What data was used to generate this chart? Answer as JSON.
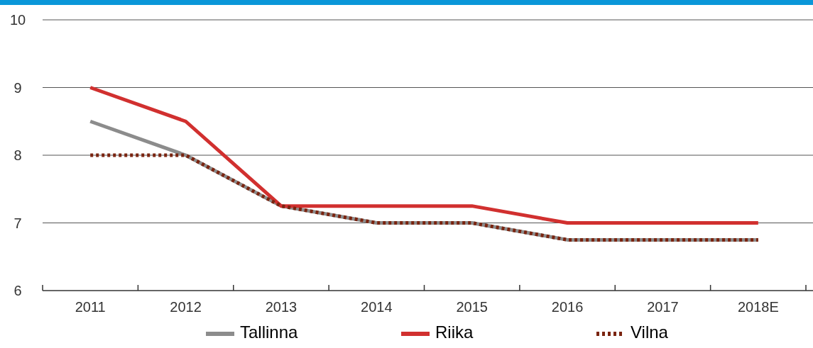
{
  "chart_data": {
    "type": "line",
    "categories": [
      "2011",
      "2012",
      "2013",
      "2014",
      "2015",
      "2016",
      "2017",
      "2018E"
    ],
    "series": [
      {
        "name": "Tallinna",
        "color": "#8c8c8c",
        "values": [
          8.5,
          8,
          7.25,
          7,
          7,
          6.75,
          6.75,
          6.75
        ]
      },
      {
        "name": "Riika",
        "color": "#d1302f",
        "values": [
          9,
          8.5,
          7.25,
          7.25,
          7.25,
          7,
          7,
          7
        ]
      },
      {
        "name": "Vilna",
        "color": "#7a2410",
        "line_style": "dotted",
        "values": [
          8,
          8,
          7.25,
          7,
          7,
          6.75,
          6.75,
          6.75
        ]
      }
    ],
    "ylim": [
      6,
      10
    ],
    "yticks": [
      6,
      7,
      8,
      9,
      10
    ],
    "grid": "y",
    "legend": "bottom"
  }
}
